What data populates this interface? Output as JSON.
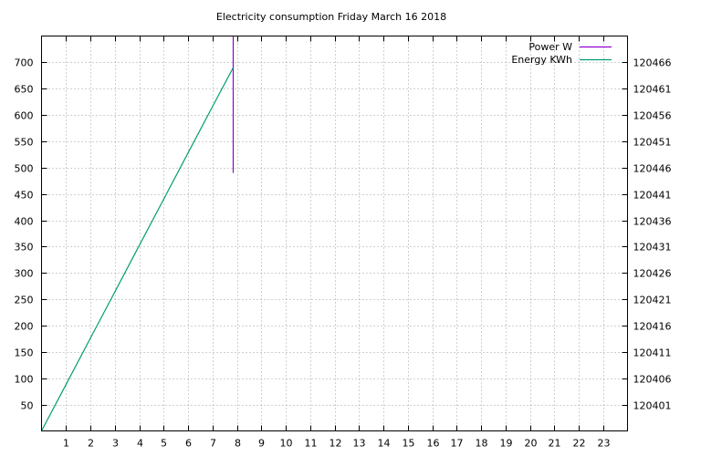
{
  "chart_data": {
    "type": "line",
    "title": "Electricity consumption Friday March 16 2018",
    "xlabel": "",
    "ylabel": "",
    "y2label": "",
    "xlim": [
      0,
      24
    ],
    "ylim": [
      0,
      750
    ],
    "y2lim": [
      120396,
      120471
    ],
    "x_ticks": [
      1,
      2,
      3,
      4,
      5,
      6,
      7,
      8,
      9,
      10,
      11,
      12,
      13,
      14,
      15,
      16,
      17,
      18,
      19,
      20,
      21,
      22,
      23
    ],
    "y_ticks": [
      50,
      100,
      150,
      200,
      250,
      300,
      350,
      400,
      450,
      500,
      550,
      600,
      650,
      700
    ],
    "y2_ticks": [
      120401,
      120406,
      120411,
      120416,
      120421,
      120426,
      120431,
      120436,
      120441,
      120446,
      120451,
      120456,
      120461,
      120466
    ],
    "grid": true,
    "legend_position": "top-right",
    "series": [
      {
        "name": "Power W",
        "axis": "y",
        "color": "#9400d3",
        "x": [
          7.85,
          7.85
        ],
        "y": [
          490,
          750
        ]
      },
      {
        "name": "Energy KWh",
        "axis": "y2",
        "color": "#009e73",
        "x": [
          0,
          1,
          2,
          3,
          4,
          5,
          6,
          7,
          7.85
        ],
        "y": [
          120396.0,
          120404.8,
          120413.6,
          120422.4,
          120431.2,
          120440.0,
          120448.8,
          120457.6,
          120465.0
        ]
      }
    ]
  }
}
